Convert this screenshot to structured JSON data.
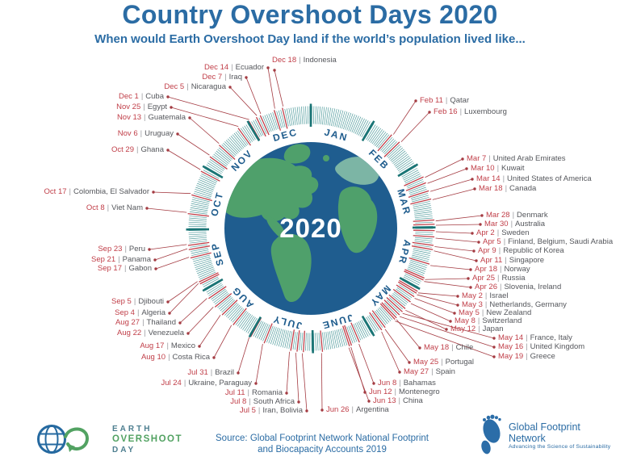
{
  "title": "Country Overshoot Days 2020",
  "subtitle": "When would Earth Overshoot Day land if the world’s population lived like...",
  "center_year": "2020",
  "separator": "|",
  "months": [
    "JAN",
    "FEB",
    "MAR",
    "APR",
    "MAY",
    "JUNE",
    "JULY",
    "AUG",
    "SEP",
    "OCT",
    "NOV",
    "DEC"
  ],
  "entries": [
    {
      "date": "Feb 11",
      "countries": "Qatar"
    },
    {
      "date": "Feb 16",
      "countries": "Luxembourg"
    },
    {
      "date": "Mar 7",
      "countries": "United Arab Emirates"
    },
    {
      "date": "Mar 10",
      "countries": "Kuwait"
    },
    {
      "date": "Mar 14",
      "countries": "United States of America"
    },
    {
      "date": "Mar 18",
      "countries": "Canada"
    },
    {
      "date": "Mar 28",
      "countries": "Denmark"
    },
    {
      "date": "Mar 30",
      "countries": "Australia"
    },
    {
      "date": "Apr 2",
      "countries": "Sweden"
    },
    {
      "date": "Apr 5",
      "countries": "Finland, Belgium, Saudi Arabia"
    },
    {
      "date": "Apr 9",
      "countries": "Republic of Korea"
    },
    {
      "date": "Apr 11",
      "countries": "Singapore"
    },
    {
      "date": "Apr 18",
      "countries": "Norway"
    },
    {
      "date": "Apr 25",
      "countries": "Russia"
    },
    {
      "date": "Apr 26",
      "countries": "Slovenia, Ireland"
    },
    {
      "date": "May 2",
      "countries": "Israel"
    },
    {
      "date": "May 3",
      "countries": "Netherlands, Germany"
    },
    {
      "date": "May 5",
      "countries": "New Zealand"
    },
    {
      "date": "May 8",
      "countries": "Switzerland"
    },
    {
      "date": "May 12",
      "countries": "Japan"
    },
    {
      "date": "May 14",
      "countries": "France, Italy"
    },
    {
      "date": "May 16",
      "countries": "United Kingdom"
    },
    {
      "date": "May 19",
      "countries": "Greece"
    },
    {
      "date": "May 18",
      "countries": "Chile"
    },
    {
      "date": "May 25",
      "countries": "Portugal"
    },
    {
      "date": "May 27",
      "countries": "Spain"
    },
    {
      "date": "Jun 8",
      "countries": "Bahamas"
    },
    {
      "date": "Jun 12",
      "countries": "Montenegro"
    },
    {
      "date": "Jun 13",
      "countries": "China"
    },
    {
      "date": "Jun 26",
      "countries": "Argentina"
    },
    {
      "date": "Jul 5",
      "countries": "Iran, Bolivia"
    },
    {
      "date": "Jul 8",
      "countries": "South Africa"
    },
    {
      "date": "Jul 11",
      "countries": "Romania"
    },
    {
      "date": "Jul 24",
      "countries": "Ukraine, Paraguay"
    },
    {
      "date": "Jul 31",
      "countries": "Brazil"
    },
    {
      "date": "Aug 10",
      "countries": "Costa Rica"
    },
    {
      "date": "Aug 17",
      "countries": "Mexico"
    },
    {
      "date": "Aug 22",
      "countries": "Venezuela"
    },
    {
      "date": "Aug 27",
      "countries": "Thailand"
    },
    {
      "date": "Sep 4",
      "countries": "Algeria"
    },
    {
      "date": "Sep 5",
      "countries": "Djibouti"
    },
    {
      "date": "Sep 17",
      "countries": "Gabon"
    },
    {
      "date": "Sep 21",
      "countries": "Panama"
    },
    {
      "date": "Sep 23",
      "countries": "Peru"
    },
    {
      "date": "Oct 8",
      "countries": "Viet Nam"
    },
    {
      "date": "Oct 17",
      "countries": "Colombia, El Salvador"
    },
    {
      "date": "Oct 29",
      "countries": "Ghana"
    },
    {
      "date": "Nov 6",
      "countries": "Uruguay"
    },
    {
      "date": "Nov 13",
      "countries": "Guatemala"
    },
    {
      "date": "Nov 25",
      "countries": "Egypt"
    },
    {
      "date": "Dec 1",
      "countries": "Cuba"
    },
    {
      "date": "Dec 5",
      "countries": "Nicaragua"
    },
    {
      "date": "Dec 7",
      "countries": "Iraq"
    },
    {
      "date": "Dec 14",
      "countries": "Ecuador"
    },
    {
      "date": "Dec 18",
      "countries": "Indonesia"
    }
  ],
  "footer": {
    "eod_logo": {
      "line1": "EARTH",
      "line2": "OVERSHOOT",
      "line3": "DAY"
    },
    "source_line1": "Source: Global Footprint Network National Footprint",
    "source_line2": "and Biocapacity Accounts 2019",
    "gfn_logo": {
      "name": "Global Footprint Network",
      "tagline": "Advancing the Science of Sustainability"
    }
  },
  "colors": {
    "title_blue": "#2b6ca4",
    "date_red": "#c03e48",
    "leader_red": "#a43b42",
    "country_gray": "#55575c",
    "tick_teal": "#4f9b9c",
    "tick_dark": "#1a7475",
    "ocean_blue": "#1f5d8f",
    "land_green": "#4fa06b",
    "land_light": "#7cb5a5",
    "month_blue": "#1d5b8c",
    "logo_green": "#52a262",
    "logo_teal": "#4e7f90"
  }
}
